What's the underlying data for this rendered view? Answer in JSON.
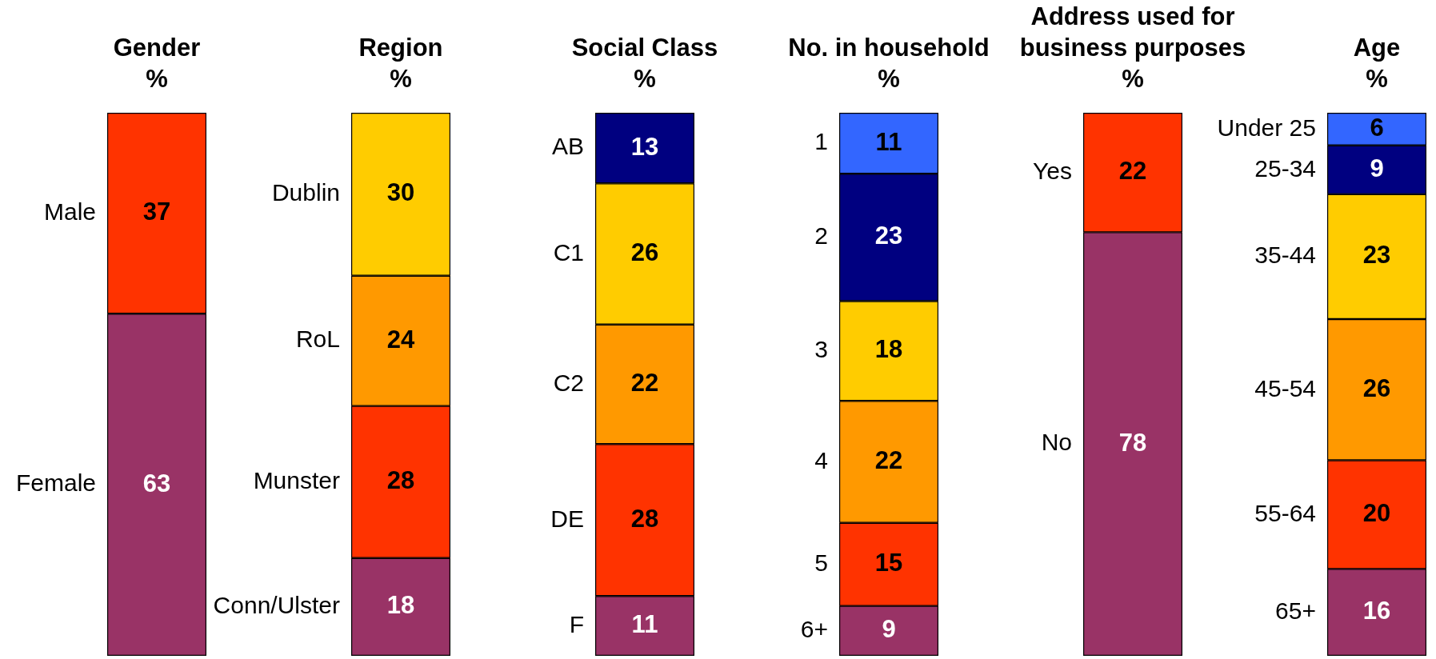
{
  "chart_data": [
    {
      "type": "bar",
      "title": "Gender",
      "subtitle": "%",
      "categories": [
        null
      ],
      "stacked": true,
      "tick_labels": false,
      "data_labels": true,
      "series": [
        {
          "name": "Female",
          "color": "#993366",
          "values": [
            63
          ]
        },
        {
          "name": "Male",
          "color": "#ff3300",
          "values": [
            37
          ]
        }
      ]
    },
    {
      "type": "bar",
      "title": "Region",
      "subtitle": "%",
      "categories": [
        null
      ],
      "stacked": true,
      "tick_labels": false,
      "data_labels": true,
      "series": [
        {
          "name": "Conn/Ulster",
          "color": "#993366",
          "values": [
            18
          ]
        },
        {
          "name": "Munster",
          "color": "#ff3300",
          "values": [
            28
          ]
        },
        {
          "name": "RoL",
          "color": "#ff9900",
          "values": [
            24
          ]
        },
        {
          "name": "Dublin",
          "color": "#ffcc00",
          "values": [
            30
          ]
        }
      ]
    },
    {
      "type": "bar",
      "title": "Social Class",
      "subtitle": "%",
      "categories": [
        null
      ],
      "stacked": true,
      "tick_labels": false,
      "data_labels": true,
      "series": [
        {
          "name": "F",
          "color": "#993366",
          "values": [
            11
          ]
        },
        {
          "name": "DE",
          "color": "#ff3300",
          "values": [
            28
          ]
        },
        {
          "name": "C2",
          "color": "#ff9900",
          "values": [
            22
          ]
        },
        {
          "name": "C1",
          "color": "#ffcc00",
          "values": [
            26
          ]
        },
        {
          "name": "AB",
          "color": "#000080",
          "values": [
            13
          ]
        }
      ]
    },
    {
      "type": "bar",
      "title": "No. in household",
      "subtitle": "%",
      "categories": [
        null
      ],
      "stacked": true,
      "tick_labels": false,
      "data_labels": true,
      "series": [
        {
          "name": "6+",
          "color": "#993366",
          "values": [
            9
          ]
        },
        {
          "name": "5",
          "color": "#ff3300",
          "values": [
            15
          ]
        },
        {
          "name": "4",
          "color": "#ff9900",
          "values": [
            22
          ]
        },
        {
          "name": "3",
          "color": "#ffcc00",
          "values": [
            18
          ]
        },
        {
          "name": "2",
          "color": "#000080",
          "values": [
            23
          ]
        },
        {
          "name": "1",
          "color": "#3366ff",
          "values": [
            11
          ]
        }
      ]
    },
    {
      "type": "bar",
      "title": "Address used for business purposes",
      "subtitle": "%",
      "categories": [
        null
      ],
      "stacked": true,
      "tick_labels": false,
      "data_labels": true,
      "series": [
        {
          "name": "No",
          "color": "#993366",
          "values": [
            78
          ]
        },
        {
          "name": "Yes",
          "color": "#ff3300",
          "values": [
            22
          ]
        }
      ]
    },
    {
      "type": "bar",
      "title": "Age",
      "subtitle": "%",
      "categories": [
        null
      ],
      "stacked": true,
      "tick_labels": false,
      "data_labels": true,
      "series": [
        {
          "name": "65+",
          "color": "#993366",
          "values": [
            16
          ]
        },
        {
          "name": "55-64",
          "color": "#ff3300",
          "values": [
            20
          ]
        },
        {
          "name": "45-54",
          "color": "#ff9900",
          "values": [
            26
          ]
        },
        {
          "name": "35-44",
          "color": "#ffcc00",
          "values": [
            23
          ]
        },
        {
          "name": "25-34",
          "color": "#000080",
          "values": [
            9
          ]
        },
        {
          "name": "Under 25",
          "color": "#3366ff",
          "values": [
            6
          ]
        }
      ]
    }
  ]
}
